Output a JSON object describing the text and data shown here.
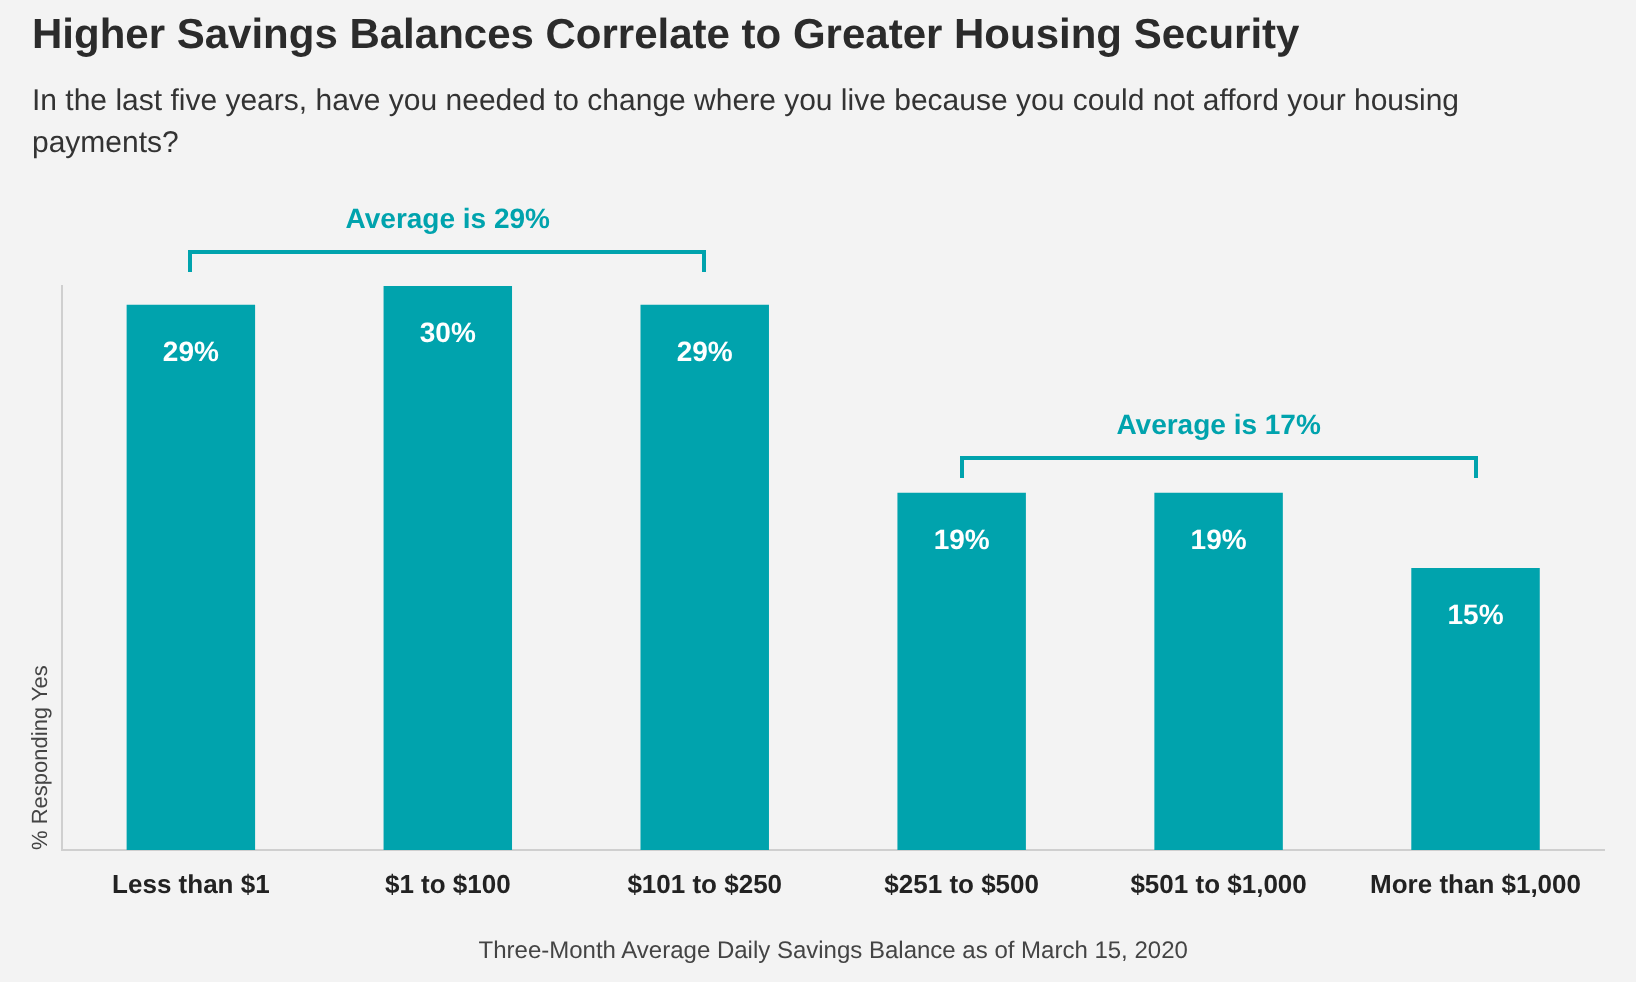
{
  "chart_data": {
    "type": "bar",
    "title": "Higher Savings Balances Correlate to Greater Housing Security",
    "subtitle": "In the last five years, have you needed to change where you live because you could not afford your housing payments?",
    "xlabel": "Three-Month Average Daily Savings Balance as of March 15, 2020",
    "ylabel": "% Responding Yes",
    "categories": [
      "Less than $1",
      "$1 to $100",
      "$101 to $250",
      "$251 to $500",
      "$501 to $1,000",
      "More than $1,000"
    ],
    "values": [
      29,
      30,
      29,
      19,
      19,
      15
    ],
    "value_labels": [
      "29%",
      "30%",
      "29%",
      "19%",
      "19%",
      "15%"
    ],
    "color": "#00a3ad",
    "ylim": [
      0,
      30
    ],
    "tick_labels": "x",
    "grid": false,
    "legend": false,
    "annotations": [
      "Average is 29%",
      "Average is 17%"
    ]
  }
}
